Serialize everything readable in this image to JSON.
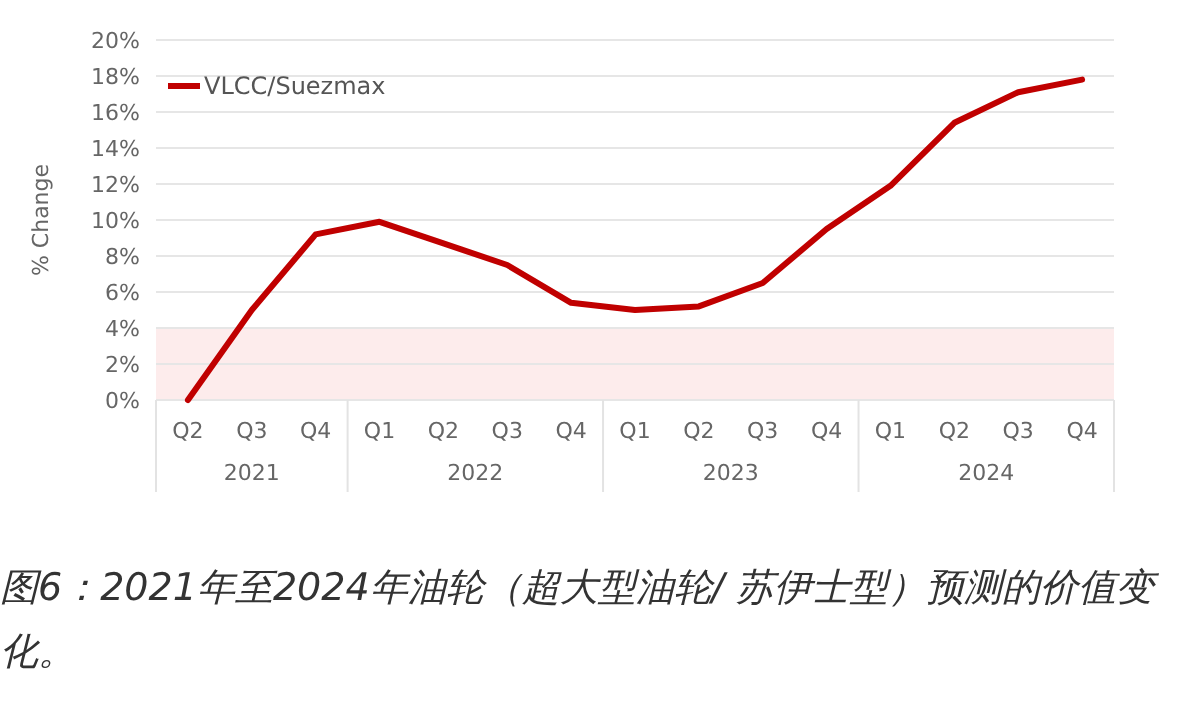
{
  "chart_data": {
    "type": "line",
    "ylabel": "% Change",
    "categories": [
      "Q2",
      "Q3",
      "Q4",
      "Q1",
      "Q2",
      "Q3",
      "Q4",
      "Q1",
      "Q2",
      "Q3",
      "Q4",
      "Q1",
      "Q2",
      "Q3",
      "Q4"
    ],
    "series": [
      {
        "name": "VLCC/Suezmax",
        "color": "#c00000",
        "values": [
          0,
          5.0,
          9.2,
          9.9,
          8.7,
          7.5,
          5.4,
          5.0,
          5.2,
          6.5,
          9.5,
          11.9,
          15.4,
          17.1,
          17.8
        ]
      }
    ],
    "ylim": [
      0,
      20
    ],
    "yticks": [
      {
        "value": 0,
        "label": "0%"
      },
      {
        "value": 2,
        "label": "2%"
      },
      {
        "value": 4,
        "label": "4%"
      },
      {
        "value": 6,
        "label": "6%"
      },
      {
        "value": 8,
        "label": "8%"
      },
      {
        "value": 10,
        "label": "10%"
      },
      {
        "value": 12,
        "label": "12%"
      },
      {
        "value": 14,
        "label": "14%"
      },
      {
        "value": 16,
        "label": "16%"
      },
      {
        "value": 18,
        "label": "18%"
      },
      {
        "value": 20,
        "label": "20%"
      }
    ],
    "bands": [
      {
        "axis": "y",
        "from": 0,
        "to": 4,
        "color": "#fdecec"
      }
    ],
    "grid": "y",
    "legend": "top left",
    "marker": "none",
    "line_style": "solid",
    "annotations": [
      "2021",
      "2022",
      "2023",
      "2024",
      "图6：2021年至2024年油轮（超大型油轮/ 苏伊士型）预测的价值变化。"
    ]
  }
}
